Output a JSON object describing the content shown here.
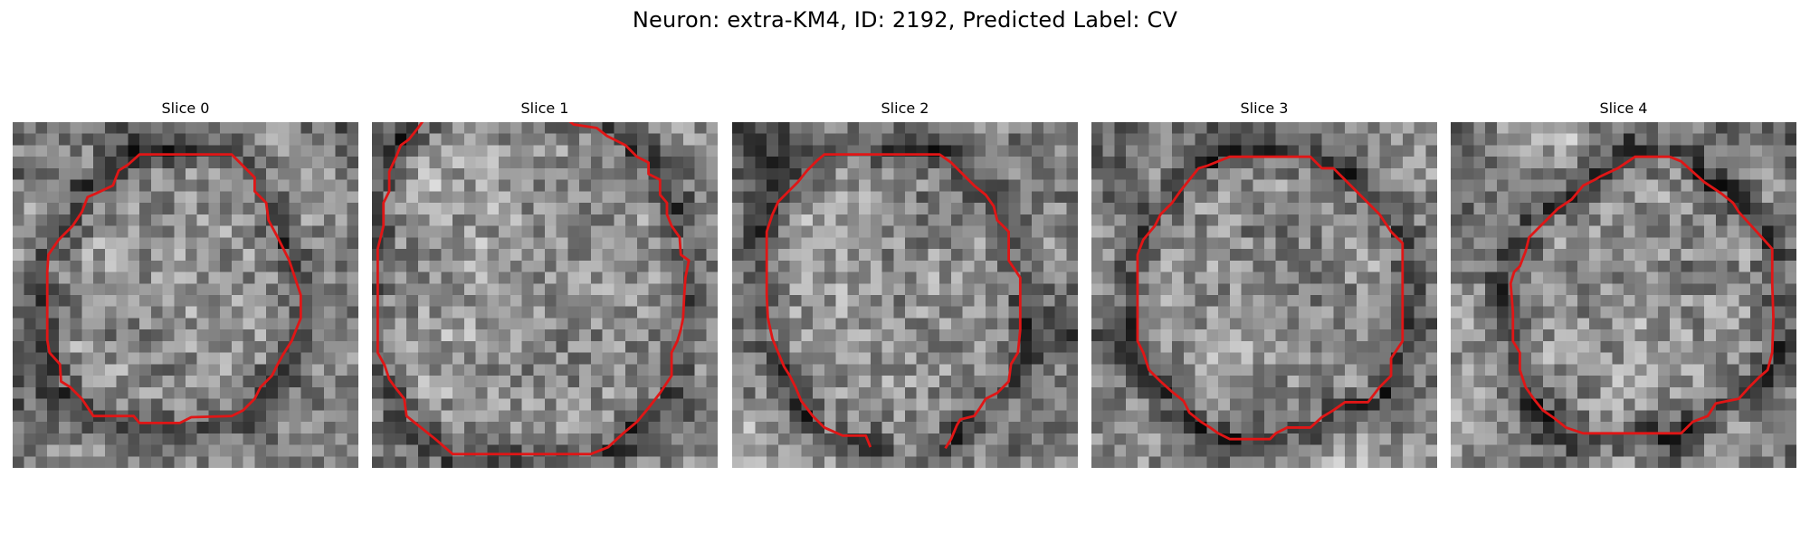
{
  "figure": {
    "title": "Neuron: extra-KM4, ID: 2192, Predicted Label: CV"
  },
  "panels": [
    {
      "title": "Slice 0",
      "texture_seed": 17,
      "contour": [
        [
          14,
          2.8
        ],
        [
          19,
          2.8
        ],
        [
          20.1,
          3.9
        ],
        [
          21,
          4.8
        ],
        [
          21,
          6
        ],
        [
          22,
          7
        ],
        [
          22.2,
          8.5
        ],
        [
          23,
          10
        ],
        [
          24,
          12
        ],
        [
          24.5,
          13.5
        ],
        [
          25,
          15
        ],
        [
          25,
          17
        ],
        [
          24.2,
          19
        ],
        [
          23.5,
          20.1
        ],
        [
          23,
          21
        ],
        [
          22.5,
          22
        ],
        [
          21.5,
          23
        ],
        [
          21,
          24
        ],
        [
          20,
          25
        ],
        [
          19,
          25.5
        ],
        [
          15.5,
          25.6
        ],
        [
          14.5,
          26.1
        ],
        [
          11,
          26.1
        ],
        [
          10.5,
          25.5
        ],
        [
          7,
          25.5
        ],
        [
          6,
          24
        ],
        [
          5,
          23
        ],
        [
          4.2,
          22.5
        ],
        [
          4.1,
          21
        ],
        [
          3.2,
          20
        ],
        [
          3,
          18.9
        ],
        [
          3,
          15
        ],
        [
          3,
          13
        ],
        [
          3.1,
          11.5
        ],
        [
          4,
          10.2
        ],
        [
          5.2,
          9
        ],
        [
          6,
          7.8
        ],
        [
          6.5,
          6.5
        ],
        [
          7.2,
          6.2
        ],
        [
          8.7,
          5.5
        ],
        [
          9.2,
          4.2
        ],
        [
          10,
          3.7
        ],
        [
          11,
          2.8
        ],
        [
          14,
          2.8
        ]
      ],
      "contour_color": "#e01616"
    },
    {
      "title": "Slice 1",
      "texture_seed": 42,
      "contour": [
        [
          4.5,
          -0.2
        ],
        [
          4,
          0.5
        ],
        [
          3.2,
          1.5
        ],
        [
          2.5,
          2
        ],
        [
          2.1,
          3
        ],
        [
          1.5,
          4.3
        ],
        [
          1.5,
          6
        ],
        [
          1,
          7
        ],
        [
          1,
          9
        ],
        [
          0.5,
          11
        ],
        [
          0.5,
          14
        ],
        [
          0.5,
          17
        ],
        [
          0.5,
          20
        ],
        [
          1.1,
          21.1
        ],
        [
          1.5,
          22.3
        ],
        [
          2,
          23
        ],
        [
          2.8,
          24
        ],
        [
          3,
          25.5
        ],
        [
          4,
          26.3
        ],
        [
          5.5,
          27.5
        ],
        [
          7,
          28.8
        ],
        [
          10,
          28.8
        ],
        [
          14,
          28.8
        ],
        [
          19,
          28.8
        ],
        [
          20.5,
          28.2
        ],
        [
          21.8,
          27
        ],
        [
          23,
          26
        ],
        [
          24,
          24.8
        ],
        [
          25,
          23.5
        ],
        [
          26,
          22
        ],
        [
          26,
          20
        ],
        [
          26.5,
          19
        ],
        [
          26.8,
          18
        ],
        [
          27,
          17
        ],
        [
          27.1,
          15
        ],
        [
          27.2,
          13.5
        ],
        [
          27.5,
          12
        ],
        [
          26.8,
          11.5
        ],
        [
          26.7,
          10
        ],
        [
          26,
          9
        ],
        [
          25.6,
          8
        ],
        [
          25.6,
          7
        ],
        [
          25,
          6.3
        ],
        [
          25,
          5
        ],
        [
          24,
          4.5
        ],
        [
          24,
          3.5
        ],
        [
          23,
          3
        ],
        [
          22,
          2
        ],
        [
          20.4,
          1.2
        ],
        [
          19.5,
          0.5
        ],
        [
          17.5,
          0.2
        ],
        [
          17,
          -0.2
        ]
      ],
      "contour_color": "#e01616"
    },
    {
      "title": "Slice 2",
      "texture_seed": 91,
      "contour": [
        [
          12,
          28.2
        ],
        [
          11.6,
          27.2
        ],
        [
          10,
          27.2
        ],
        [
          9.6,
          27.2
        ],
        [
          8,
          26.5
        ],
        [
          7,
          25.5
        ],
        [
          6,
          24.2
        ],
        [
          5.5,
          23
        ],
        [
          5,
          22
        ],
        [
          4.5,
          21.2
        ],
        [
          4,
          20
        ],
        [
          3.5,
          18.8
        ],
        [
          3.1,
          17
        ],
        [
          3,
          15
        ],
        [
          3,
          12
        ],
        [
          3,
          9.5
        ],
        [
          3.5,
          8
        ],
        [
          4,
          6.9
        ],
        [
          4.7,
          6.2
        ],
        [
          5.7,
          5.2
        ],
        [
          6.5,
          4.2
        ],
        [
          7.4,
          3.3
        ],
        [
          8,
          2.8
        ],
        [
          10,
          2.8
        ],
        [
          14,
          2.8
        ],
        [
          18,
          2.8
        ],
        [
          19,
          3.5
        ],
        [
          20,
          4.5
        ],
        [
          21,
          5.5
        ],
        [
          22,
          6.3
        ],
        [
          22.7,
          7.3
        ],
        [
          23,
          8.5
        ],
        [
          24,
          9.5
        ],
        [
          24,
          12
        ],
        [
          25,
          13.5
        ],
        [
          25,
          15.5
        ],
        [
          25,
          18
        ],
        [
          24.8,
          20
        ],
        [
          24.2,
          21
        ],
        [
          24,
          22.5
        ],
        [
          23,
          23.5
        ],
        [
          22,
          24
        ],
        [
          21.5,
          24.8
        ],
        [
          21,
          25.5
        ],
        [
          19.8,
          25.8
        ],
        [
          19.5,
          26.3
        ],
        [
          19,
          27.5
        ],
        [
          18.5,
          28.3
        ]
      ],
      "contour_color": "#e01616"
    },
    {
      "title": "Slice 3",
      "texture_seed": 133,
      "contour": [
        [
          10,
          3.8
        ],
        [
          12,
          3
        ],
        [
          19,
          3
        ],
        [
          20,
          4
        ],
        [
          21,
          4
        ],
        [
          22,
          5
        ],
        [
          23,
          6
        ],
        [
          24,
          7
        ],
        [
          25,
          8
        ],
        [
          26,
          9.5
        ],
        [
          27,
          10.5
        ],
        [
          27,
          13
        ],
        [
          27,
          16
        ],
        [
          27,
          19
        ],
        [
          26,
          20.5
        ],
        [
          26,
          22
        ],
        [
          25,
          23
        ],
        [
          24,
          24.3
        ],
        [
          22,
          24.3
        ],
        [
          21,
          25
        ],
        [
          20,
          25.6
        ],
        [
          19,
          26.5
        ],
        [
          17,
          26.5
        ],
        [
          16,
          27
        ],
        [
          15.5,
          27.5
        ],
        [
          12,
          27.5
        ],
        [
          11,
          27
        ],
        [
          10.3,
          26.5
        ],
        [
          9.5,
          26
        ],
        [
          8.5,
          25.2
        ],
        [
          8,
          24.2
        ],
        [
          7,
          23.4
        ],
        [
          6,
          22.5
        ],
        [
          5,
          21.5
        ],
        [
          4.5,
          20
        ],
        [
          4,
          19
        ],
        [
          4,
          15
        ],
        [
          4,
          11.5
        ],
        [
          4.5,
          10.2
        ],
        [
          5.5,
          9
        ],
        [
          6,
          8
        ],
        [
          7,
          7
        ],
        [
          7.7,
          6
        ],
        [
          8.5,
          5
        ],
        [
          9.3,
          4
        ],
        [
          10,
          3.8
        ]
      ],
      "contour_color": "#e01616"
    },
    {
      "title": "Slice 4",
      "texture_seed": 207,
      "contour": [
        [
          19,
          3
        ],
        [
          20,
          3.4
        ],
        [
          21,
          4.3
        ],
        [
          22,
          5.2
        ],
        [
          23.5,
          6.2
        ],
        [
          24.5,
          7
        ],
        [
          25,
          7.8
        ],
        [
          26,
          8.9
        ],
        [
          27,
          10
        ],
        [
          27.9,
          11
        ],
        [
          27.9,
          14
        ],
        [
          28,
          17
        ],
        [
          27.9,
          20
        ],
        [
          27.5,
          21.5
        ],
        [
          26.8,
          22.1
        ],
        [
          25.9,
          23
        ],
        [
          25,
          24
        ],
        [
          24,
          24.2
        ],
        [
          23,
          24.4
        ],
        [
          22.3,
          25.5
        ],
        [
          21,
          26
        ],
        [
          20,
          27
        ],
        [
          19,
          27
        ],
        [
          18,
          27
        ],
        [
          17,
          27
        ],
        [
          15,
          27
        ],
        [
          13,
          27
        ],
        [
          11.5,
          27
        ],
        [
          10,
          26.5
        ],
        [
          9,
          25.7
        ],
        [
          8,
          25
        ],
        [
          7.2,
          24
        ],
        [
          6.5,
          23
        ],
        [
          6,
          21.5
        ],
        [
          6,
          20
        ],
        [
          5.4,
          19
        ],
        [
          5.4,
          16.5
        ],
        [
          5.2,
          14
        ],
        [
          5.5,
          13
        ],
        [
          6,
          12.5
        ],
        [
          6.5,
          11.2
        ],
        [
          6.8,
          10
        ],
        [
          7.5,
          9.3
        ],
        [
          8.3,
          8.5
        ],
        [
          9.3,
          7.5
        ],
        [
          10.5,
          6.7
        ],
        [
          11.5,
          5.5
        ],
        [
          12.5,
          5
        ],
        [
          13,
          4.7
        ],
        [
          14.5,
          4
        ],
        [
          16,
          3
        ],
        [
          17,
          3
        ],
        [
          19,
          3
        ]
      ],
      "contour_color": "#e01616"
    }
  ]
}
